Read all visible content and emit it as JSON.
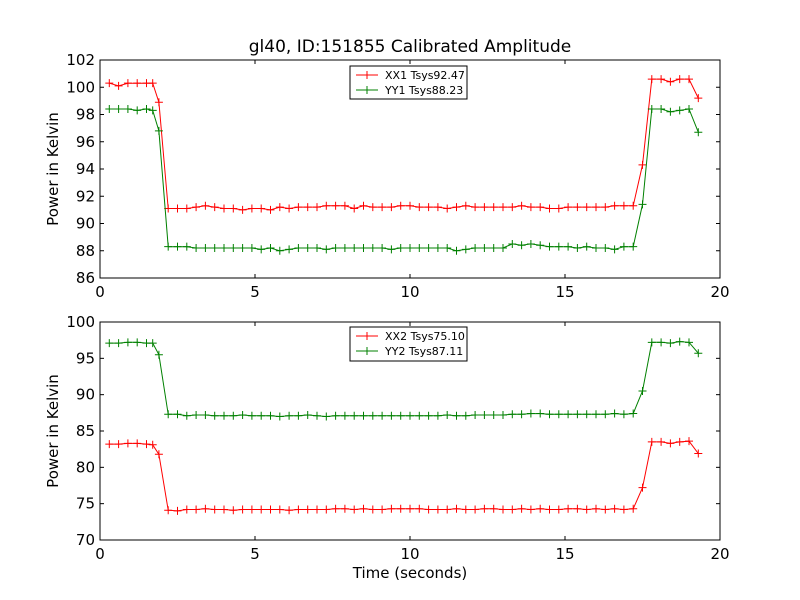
{
  "chart_data": [
    {
      "type": "line",
      "title": "gl40, ID:151855 Calibrated Amplitude",
      "xlabel": "",
      "ylabel": "Power in Kelvin",
      "xlim": [
        0,
        20
      ],
      "ylim": [
        86,
        102
      ],
      "xticks": [
        0,
        5,
        10,
        15,
        20
      ],
      "yticks": [
        86,
        88,
        90,
        92,
        94,
        96,
        98,
        100,
        102
      ],
      "legend_position": "top-center",
      "grid": false,
      "x": [
        0.3,
        0.6,
        0.9,
        1.2,
        1.5,
        1.7,
        1.9,
        2.2,
        2.5,
        2.8,
        3.1,
        3.4,
        3.7,
        4.0,
        4.3,
        4.6,
        4.9,
        5.2,
        5.5,
        5.8,
        6.1,
        6.4,
        6.7,
        7.0,
        7.3,
        7.6,
        7.9,
        8.2,
        8.5,
        8.8,
        9.1,
        9.4,
        9.7,
        10.0,
        10.3,
        10.6,
        10.9,
        11.2,
        11.5,
        11.8,
        12.1,
        12.4,
        12.7,
        13.0,
        13.3,
        13.6,
        13.9,
        14.2,
        14.5,
        14.8,
        15.1,
        15.4,
        15.7,
        16.0,
        16.3,
        16.6,
        16.9,
        17.2,
        17.5,
        17.8,
        18.1,
        18.4,
        18.7,
        19.0,
        19.3
      ],
      "series": [
        {
          "name": "XX1 Tsys92.47",
          "color": "#ff0000",
          "values": [
            100.3,
            100.1,
            100.3,
            100.3,
            100.3,
            100.3,
            98.9,
            91.1,
            91.1,
            91.1,
            91.2,
            91.3,
            91.2,
            91.1,
            91.1,
            91.0,
            91.1,
            91.1,
            91.0,
            91.2,
            91.1,
            91.2,
            91.2,
            91.2,
            91.3,
            91.3,
            91.3,
            91.1,
            91.3,
            91.2,
            91.2,
            91.2,
            91.3,
            91.3,
            91.2,
            91.2,
            91.2,
            91.1,
            91.2,
            91.3,
            91.2,
            91.2,
            91.2,
            91.2,
            91.2,
            91.3,
            91.2,
            91.2,
            91.1,
            91.1,
            91.2,
            91.2,
            91.2,
            91.2,
            91.2,
            91.3,
            91.3,
            91.3,
            94.3,
            100.6,
            100.6,
            100.4,
            100.6,
            100.6,
            99.2
          ]
        },
        {
          "name": "YY1 Tsys88.23",
          "color": "#008000",
          "values": [
            98.4,
            98.4,
            98.4,
            98.3,
            98.4,
            98.3,
            96.8,
            88.3,
            88.3,
            88.3,
            88.2,
            88.2,
            88.2,
            88.2,
            88.2,
            88.2,
            88.2,
            88.1,
            88.2,
            88.0,
            88.1,
            88.2,
            88.2,
            88.2,
            88.1,
            88.2,
            88.2,
            88.2,
            88.2,
            88.2,
            88.2,
            88.1,
            88.2,
            88.2,
            88.2,
            88.2,
            88.2,
            88.2,
            88.0,
            88.1,
            88.2,
            88.2,
            88.2,
            88.2,
            88.5,
            88.4,
            88.5,
            88.4,
            88.3,
            88.3,
            88.3,
            88.2,
            88.3,
            88.2,
            88.2,
            88.1,
            88.3,
            88.3,
            91.4,
            98.4,
            98.4,
            98.2,
            98.3,
            98.4,
            96.7
          ]
        }
      ]
    },
    {
      "type": "line",
      "title": "",
      "xlabel": "Time (seconds)",
      "ylabel": "Power in Kelvin",
      "xlim": [
        0,
        20
      ],
      "ylim": [
        70,
        100
      ],
      "xticks": [
        0,
        5,
        10,
        15,
        20
      ],
      "yticks": [
        70,
        75,
        80,
        85,
        90,
        95,
        100
      ],
      "legend_position": "top-center",
      "grid": false,
      "x": [
        0.3,
        0.6,
        0.9,
        1.2,
        1.5,
        1.7,
        1.9,
        2.2,
        2.5,
        2.8,
        3.1,
        3.4,
        3.7,
        4.0,
        4.3,
        4.6,
        4.9,
        5.2,
        5.5,
        5.8,
        6.1,
        6.4,
        6.7,
        7.0,
        7.3,
        7.6,
        7.9,
        8.2,
        8.5,
        8.8,
        9.1,
        9.4,
        9.7,
        10.0,
        10.3,
        10.6,
        10.9,
        11.2,
        11.5,
        11.8,
        12.1,
        12.4,
        12.7,
        13.0,
        13.3,
        13.6,
        13.9,
        14.2,
        14.5,
        14.8,
        15.1,
        15.4,
        15.7,
        16.0,
        16.3,
        16.6,
        16.9,
        17.2,
        17.5,
        17.8,
        18.1,
        18.4,
        18.7,
        19.0,
        19.3
      ],
      "series": [
        {
          "name": "XX2 Tsys75.10",
          "color": "#ff0000",
          "values": [
            83.2,
            83.2,
            83.3,
            83.3,
            83.2,
            83.1,
            81.8,
            74.1,
            74.0,
            74.2,
            74.2,
            74.3,
            74.2,
            74.2,
            74.1,
            74.2,
            74.2,
            74.2,
            74.2,
            74.2,
            74.1,
            74.2,
            74.2,
            74.2,
            74.2,
            74.3,
            74.3,
            74.2,
            74.3,
            74.2,
            74.2,
            74.3,
            74.3,
            74.3,
            74.3,
            74.2,
            74.2,
            74.2,
            74.3,
            74.2,
            74.2,
            74.3,
            74.3,
            74.2,
            74.2,
            74.3,
            74.2,
            74.3,
            74.2,
            74.2,
            74.3,
            74.3,
            74.2,
            74.3,
            74.2,
            74.3,
            74.2,
            74.3,
            77.2,
            83.5,
            83.5,
            83.3,
            83.5,
            83.6,
            81.9
          ]
        },
        {
          "name": "YY2 Tsys87.11",
          "color": "#008000",
          "values": [
            97.1,
            97.1,
            97.2,
            97.2,
            97.1,
            97.1,
            95.5,
            87.3,
            87.3,
            87.1,
            87.2,
            87.2,
            87.1,
            87.1,
            87.1,
            87.2,
            87.1,
            87.1,
            87.1,
            87.0,
            87.1,
            87.1,
            87.2,
            87.1,
            87.0,
            87.1,
            87.1,
            87.1,
            87.1,
            87.1,
            87.1,
            87.1,
            87.1,
            87.1,
            87.1,
            87.1,
            87.1,
            87.2,
            87.1,
            87.1,
            87.2,
            87.2,
            87.2,
            87.2,
            87.3,
            87.3,
            87.4,
            87.4,
            87.3,
            87.3,
            87.3,
            87.3,
            87.3,
            87.3,
            87.3,
            87.4,
            87.3,
            87.4,
            90.5,
            97.2,
            97.2,
            97.1,
            97.3,
            97.2,
            95.7
          ]
        }
      ]
    }
  ]
}
